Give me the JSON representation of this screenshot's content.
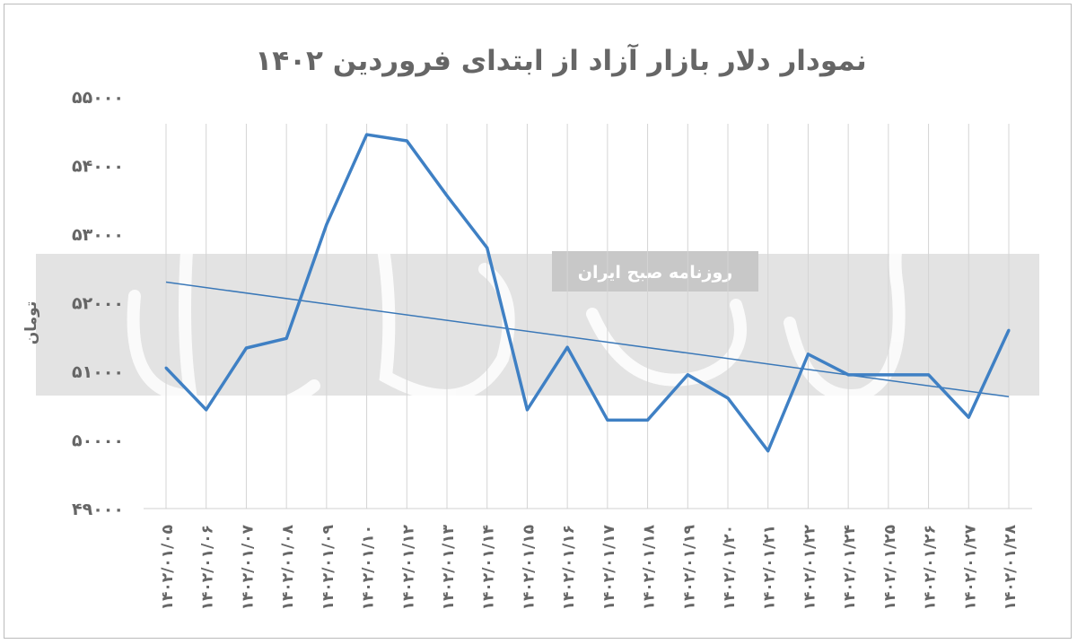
{
  "chart_data": {
    "type": "line",
    "title": "نمودار دلار بازار آزاد از ابتدای فروردین ۱۴۰۲",
    "xlabel": "",
    "ylabel": "تومان",
    "ylim": [
      49000,
      55000
    ],
    "yticks": [
      49000,
      50000,
      51000,
      52000,
      53000,
      54000,
      55000
    ],
    "ytick_labels": [
      "۴۹۰۰۰",
      "۵۰۰۰۰",
      "۵۱۰۰۰",
      "۵۲۰۰۰",
      "۵۳۰۰۰",
      "۵۴۰۰۰",
      "۵۵۰۰۰"
    ],
    "grid": "vertical",
    "categories": [
      "۱۴۰۲/۰۱/۰۵",
      "۱۴۰۲/۰۱/۰۶",
      "۱۴۰۲/۰۱/۰۷",
      "۱۴۰۲/۰۱/۰۸",
      "۱۴۰۲/۰۱/۰۹",
      "۱۴۰۲/۰۱/۱۰",
      "۱۴۰۲/۰۱/۱۲",
      "۱۴۰۲/۰۱/۱۳",
      "۱۴۰۲/۰۱/۱۴",
      "۱۴۰۲/۰۱/۱۵",
      "۱۴۰۲/۰۱/۱۶",
      "۱۴۰۲/۰۱/۱۷",
      "۱۴۰۲/۰۱/۱۸",
      "۱۴۰۲/۰۱/۱۹",
      "۱۴۰۲/۰۱/۲۰",
      "۱۴۰۲/۰۱/۲۱",
      "۱۴۰۲/۰۱/۲۲",
      "۱۴۰۲/۰۱/۲۴",
      "۱۴۰۲/۰۱/۲۵",
      "۱۴۰۲/۰۱/۲۶",
      "۱۴۰۲/۰۱/۲۷",
      "۱۴۰۲/۰۱/۲۸"
    ],
    "series": [
      {
        "values": [
          51050,
          50440,
          51340,
          51480,
          53140,
          54450,
          54360,
          53560,
          52800,
          50440,
          51350,
          50290,
          50290,
          50950,
          50610,
          49840,
          51250,
          50950,
          50950,
          50950,
          50330,
          51600
        ],
        "color": "#3f80c4"
      }
    ],
    "trendline": {
      "type": "linear",
      "start": 52300,
      "end": 50630,
      "color": "#3a78b8"
    }
  },
  "watermark": {
    "logo": "دنیای اقتصاد",
    "tagline": "روزنامه صبح ایران"
  }
}
